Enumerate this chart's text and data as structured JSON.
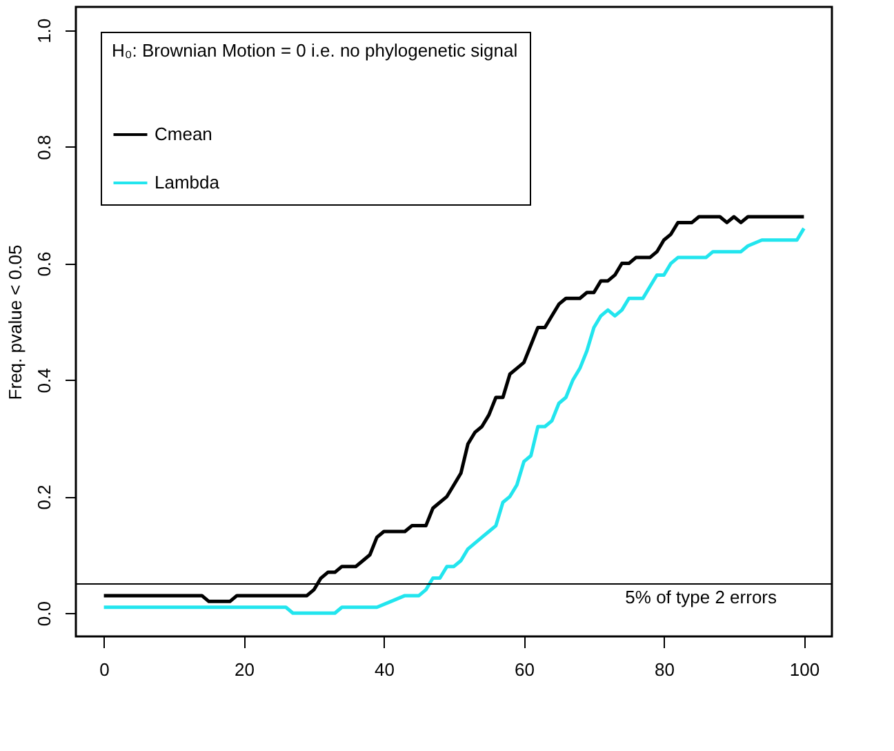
{
  "chart_data": {
    "type": "line",
    "xlabel": null,
    "ylabel": "Freq. pvalue < 0.05",
    "legend_title": "H₀: Brownian Motion = 0 i.e. no phylogenetic signal",
    "legend": "top left",
    "grid": false,
    "marker": "none",
    "line_style": "solid",
    "xlim": [
      -4,
      104
    ],
    "xticks": [
      0,
      20,
      40,
      60,
      80,
      100
    ],
    "ylim": [
      -0.04,
      1.04
    ],
    "yticks": [
      {
        "value": 0,
        "label": "0.0"
      },
      0.2,
      0.4,
      0.6,
      0.8,
      {
        "value": 1,
        "label": "1.0"
      }
    ],
    "ref_lines": [
      {
        "axis": "y",
        "value": 0.05,
        "label": "5% of type 2 errors",
        "color": "#000000"
      }
    ],
    "series": [
      {
        "name": "Cmean",
        "color": "#000000",
        "x": [
          0,
          14,
          15,
          18,
          19,
          29,
          30,
          31,
          32,
          33,
          34,
          36,
          37,
          38,
          39,
          40,
          43,
          44,
          46,
          47,
          48,
          49,
          50,
          51,
          52,
          53,
          54,
          55,
          56,
          57,
          58,
          59,
          60,
          61,
          62,
          63,
          64,
          65,
          66,
          68,
          69,
          70,
          71,
          72,
          73,
          74,
          75,
          76,
          78,
          79,
          80,
          81,
          82,
          84,
          85,
          88,
          89,
          90,
          91,
          92,
          100
        ],
        "values": [
          0.03,
          0.03,
          0.02,
          0.02,
          0.03,
          0.03,
          0.04,
          0.06,
          0.07,
          0.07,
          0.08,
          0.08,
          0.09,
          0.1,
          0.13,
          0.14,
          0.14,
          0.15,
          0.15,
          0.18,
          0.19,
          0.2,
          0.22,
          0.24,
          0.29,
          0.31,
          0.32,
          0.34,
          0.37,
          0.37,
          0.41,
          0.42,
          0.43,
          0.46,
          0.49,
          0.49,
          0.51,
          0.53,
          0.54,
          0.54,
          0.55,
          0.55,
          0.57,
          0.57,
          0.58,
          0.6,
          0.6,
          0.61,
          0.61,
          0.62,
          0.64,
          0.65,
          0.67,
          0.67,
          0.68,
          0.68,
          0.67,
          0.68,
          0.67,
          0.68,
          0.68
        ]
      },
      {
        "name": "Lambda",
        "color": "#22e5ee",
        "x": [
          0,
          26,
          27,
          33,
          34,
          39,
          41,
          43,
          45,
          46,
          47,
          48,
          49,
          50,
          51,
          52,
          53,
          54,
          55,
          56,
          57,
          58,
          59,
          60,
          61,
          62,
          63,
          64,
          65,
          66,
          67,
          68,
          69,
          70,
          71,
          72,
          73,
          74,
          75,
          77,
          78,
          79,
          80,
          81,
          82,
          86,
          87,
          91,
          92,
          94,
          99,
          100
        ],
        "values": [
          0.01,
          0.01,
          0.0,
          0.0,
          0.01,
          0.01,
          0.02,
          0.03,
          0.03,
          0.04,
          0.06,
          0.06,
          0.08,
          0.08,
          0.09,
          0.11,
          0.12,
          0.13,
          0.14,
          0.15,
          0.19,
          0.2,
          0.22,
          0.26,
          0.27,
          0.32,
          0.32,
          0.33,
          0.36,
          0.37,
          0.4,
          0.42,
          0.45,
          0.49,
          0.51,
          0.52,
          0.51,
          0.52,
          0.54,
          0.54,
          0.56,
          0.58,
          0.58,
          0.6,
          0.61,
          0.61,
          0.62,
          0.62,
          0.63,
          0.64,
          0.64,
          0.66
        ]
      }
    ]
  }
}
